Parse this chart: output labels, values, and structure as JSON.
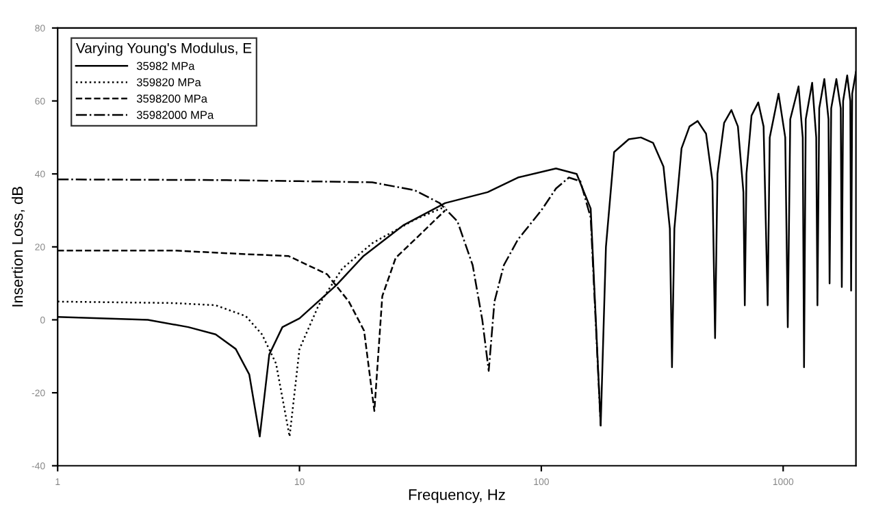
{
  "chart_data": {
    "type": "line",
    "xlabel": "Frequency, Hz",
    "ylabel": "Insertion Loss, dB",
    "legend_title": "Varying Young's Modulus, E",
    "legend": "top left",
    "log": "x",
    "grid": false,
    "xlim": [
      1,
      2000
    ],
    "xticks": [
      1,
      10,
      100,
      1000
    ],
    "ylim": [
      -40,
      80
    ],
    "yticks": [
      -40,
      -20,
      0,
      20,
      40,
      60,
      80
    ],
    "series": [
      {
        "name": "35982 MPa",
        "color": "#000000",
        "line_style": "solid",
        "x": [
          1,
          2.36,
          3.47,
          4.5,
          5.45,
          6.2,
          6.85,
          7.5,
          8.5,
          10,
          14.2,
          18.4,
          27,
          40,
          60,
          80,
          115,
          140,
          160,
          176,
          185,
          200,
          230,
          258,
          290,
          320,
          340,
          347,
          355,
          380,
          410,
          443,
          480,
          510,
          523,
          535,
          570,
          611,
          650,
          685,
          694,
          705,
          740,
          789,
          830,
          863,
          880,
          957,
          1020,
          1045,
          1070,
          1158,
          1205,
          1220,
          1240,
          1318,
          1370,
          1386,
          1410,
          1480,
          1540,
          1556,
          1580,
          1660,
          1730,
          1748,
          1770,
          1840,
          1895,
          1910,
          1930,
          2000
        ],
        "values": [
          0.8,
          0,
          -2,
          -4,
          -8,
          -15,
          -32,
          -9.5,
          -2,
          0.4,
          9.5,
          17.5,
          26,
          32,
          35,
          39,
          41.5,
          40,
          30.5,
          -29,
          20,
          46,
          49.5,
          50,
          48.5,
          42,
          25,
          -13,
          25,
          47,
          53,
          54.5,
          51,
          38,
          -5,
          40,
          54,
          57.5,
          53,
          35,
          4,
          40,
          56,
          59.6,
          53,
          4,
          50,
          62,
          50,
          -2,
          55,
          64,
          50,
          -13,
          55,
          65,
          50,
          4,
          58,
          66,
          55,
          10,
          58,
          66,
          58,
          9,
          60,
          67,
          60,
          8,
          62,
          68
        ]
      },
      {
        "name": "359820 MPa",
        "color": "#000000",
        "line_style": "dotted",
        "x": [
          1,
          3,
          4.5,
          6,
          7,
          8,
          9.1,
          10,
          12,
          15,
          20,
          30,
          40
        ],
        "values": [
          5,
          4.6,
          4,
          1,
          -4,
          -12,
          -32,
          -8,
          4,
          14,
          21,
          27.5,
          31
        ]
      },
      {
        "name": "3598200 MPa",
        "color": "#000000",
        "line_style": "dashed",
        "x": [
          1,
          3,
          6,
          9,
          13,
          16,
          18.5,
          20.4,
          22,
          25,
          30,
          40
        ],
        "values": [
          19,
          19,
          18,
          17.5,
          12.5,
          5,
          -3,
          -25,
          6.5,
          17,
          22,
          30
        ]
      },
      {
        "name": "35982000 MPa",
        "color": "#000000",
        "line_style": "dashdot",
        "x": [
          1,
          5,
          10,
          20,
          30,
          38,
          45,
          52,
          57,
          60.6,
          64,
          70,
          80,
          100,
          115,
          130,
          145,
          160,
          176
        ],
        "values": [
          38.5,
          38.3,
          38,
          37.7,
          35.5,
          32,
          27,
          15,
          0,
          -14,
          5,
          15,
          22,
          30,
          36,
          39,
          38,
          28,
          -29
        ]
      }
    ]
  }
}
